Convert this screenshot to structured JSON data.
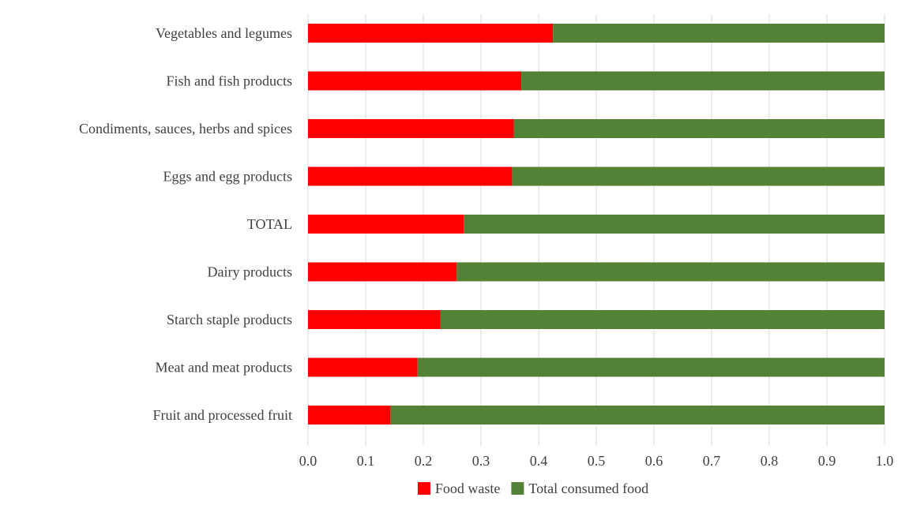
{
  "chart_data": {
    "type": "bar",
    "orientation": "horizontal",
    "stacked": true,
    "title": "",
    "xlabel": "",
    "ylabel": "",
    "xlim": [
      0,
      1
    ],
    "grid": true,
    "legend_position": "bottom",
    "categories": [
      "Vegetables and legumes",
      "Fish and fish products",
      "Condiments, sauces, herbs and spices",
      "Eggs and egg products",
      "TOTAL",
      "Dairy products",
      "Starch staple products",
      "Meat and meat products",
      "Fruit and processed fruit"
    ],
    "series": [
      {
        "name": "Food waste",
        "color": "#ff0000",
        "values": [
          0.425,
          0.37,
          0.357,
          0.354,
          0.27,
          0.258,
          0.23,
          0.19,
          0.143
        ]
      },
      {
        "name": "Total consumed food",
        "color": "#538135",
        "values": [
          0.575,
          0.63,
          0.643,
          0.646,
          0.73,
          0.742,
          0.77,
          0.81,
          0.857
        ]
      }
    ],
    "x_ticks": [
      "0.0",
      "0.1",
      "0.2",
      "0.3",
      "0.4",
      "0.5",
      "0.6",
      "0.7",
      "0.8",
      "0.9",
      "1.0"
    ]
  }
}
